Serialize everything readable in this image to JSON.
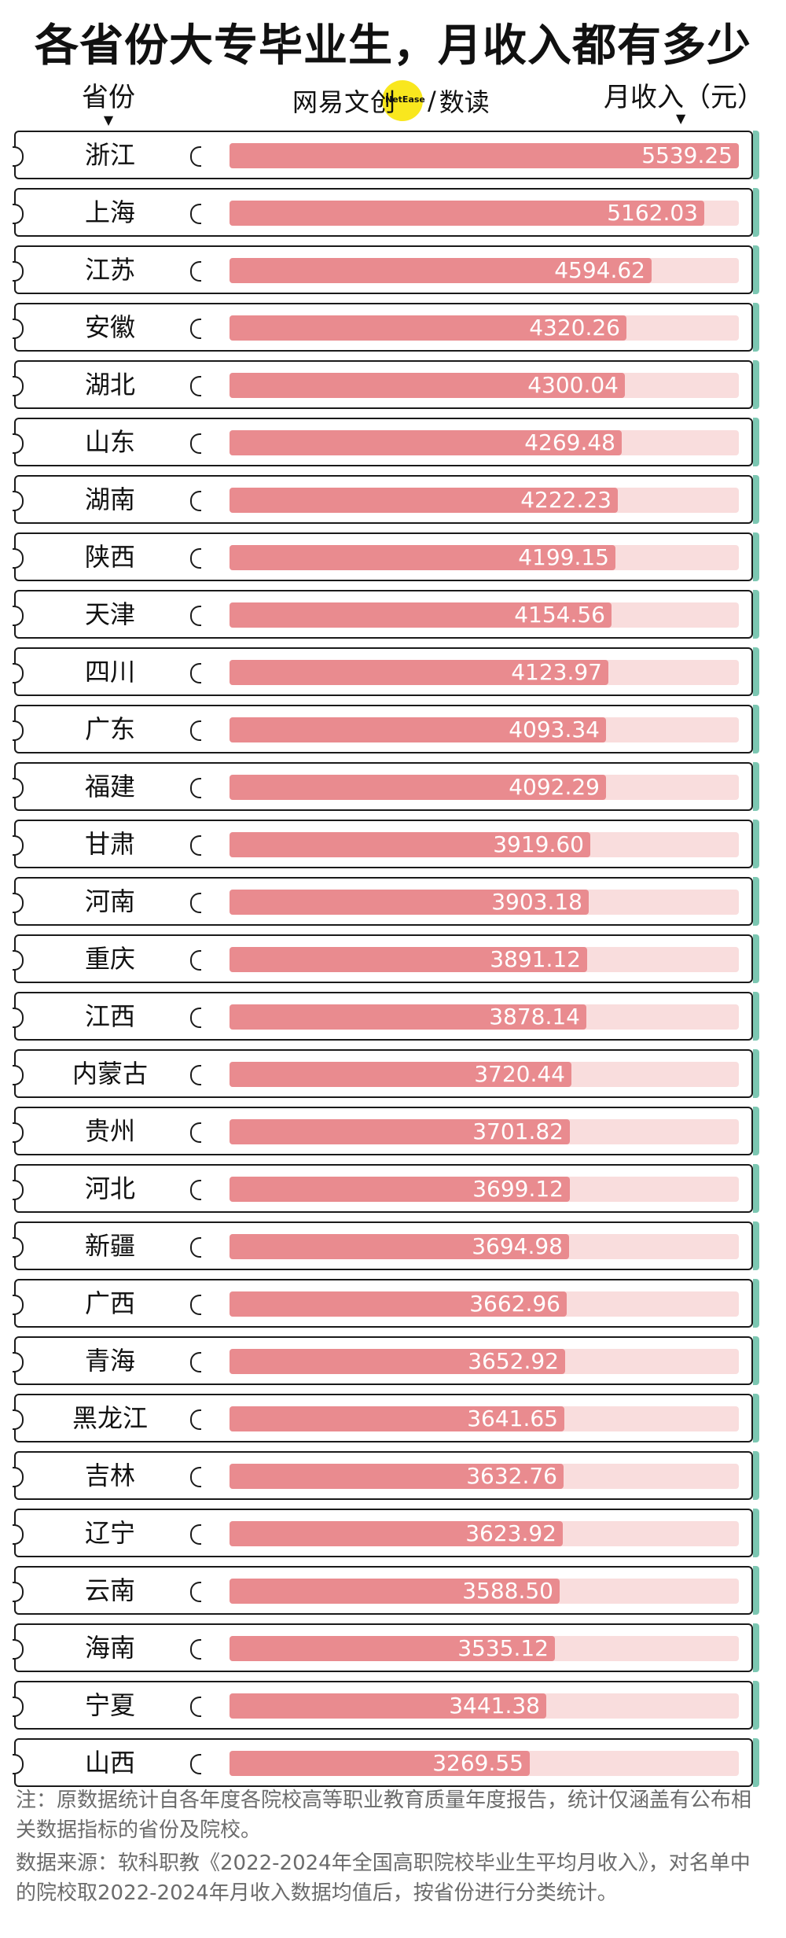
{
  "title": "各省份大专毕业生，月收入都有多少",
  "header": {
    "province_label": "省份",
    "income_label": "月收入（元）",
    "brand_text": "网易文创",
    "brand_small": "NetEase",
    "brand_sep": "/",
    "brand_sub": "数读",
    "arrow": "▼"
  },
  "colors": {
    "bar": "#e98b8f",
    "track": "#f9dddd",
    "accent": "#7cc7b2",
    "logo": "#f9e71e"
  },
  "chart_data": {
    "type": "bar",
    "title": "各省份大专毕业生，月收入都有多少",
    "xlabel": "省份",
    "ylabel": "月收入（元）",
    "ylim": [
      0,
      5539.25
    ],
    "orientation": "horizontal",
    "categories": [
      "浙江",
      "上海",
      "江苏",
      "安徽",
      "湖北",
      "山东",
      "湖南",
      "陕西",
      "天津",
      "四川",
      "广东",
      "福建",
      "甘肃",
      "河南",
      "重庆",
      "江西",
      "内蒙古",
      "贵州",
      "河北",
      "新疆",
      "广西",
      "青海",
      "黑龙江",
      "吉林",
      "辽宁",
      "云南",
      "海南",
      "宁夏",
      "山西"
    ],
    "values": [
      5539.25,
      5162.03,
      4594.62,
      4320.26,
      4300.04,
      4269.48,
      4222.23,
      4199.15,
      4154.56,
      4123.97,
      4093.34,
      4092.29,
      3919.6,
      3903.18,
      3891.12,
      3878.14,
      3720.44,
      3701.82,
      3699.12,
      3694.98,
      3662.96,
      3652.92,
      3641.65,
      3632.76,
      3623.92,
      3588.5,
      3535.12,
      3441.38,
      3269.55
    ],
    "labels": [
      "5539.25",
      "5162.03",
      "4594.62",
      "4320.26",
      "4300.04",
      "4269.48",
      "4222.23",
      "4199.15",
      "4154.56",
      "4123.97",
      "4093.34",
      "4092.29",
      "3919.60",
      "3903.18",
      "3891.12",
      "3878.14",
      "3720.44",
      "3701.82",
      "3699.12",
      "3694.98",
      "3662.96",
      "3652.92",
      "3641.65",
      "3632.76",
      "3623.92",
      "3588.50",
      "3535.12",
      "3441.38",
      "3269.55"
    ]
  },
  "notes": {
    "note": "注：原数据统计自各年度各院校高等职业教育质量年度报告，统计仅涵盖有公布相关数据指标的省份及院校。",
    "source": "数据来源：软科职教《2022-2024年全国高职院校毕业生平均月收入》，对名单中的院校取2022-2024年月收入数据均值后，按省份进行分类统计。"
  }
}
